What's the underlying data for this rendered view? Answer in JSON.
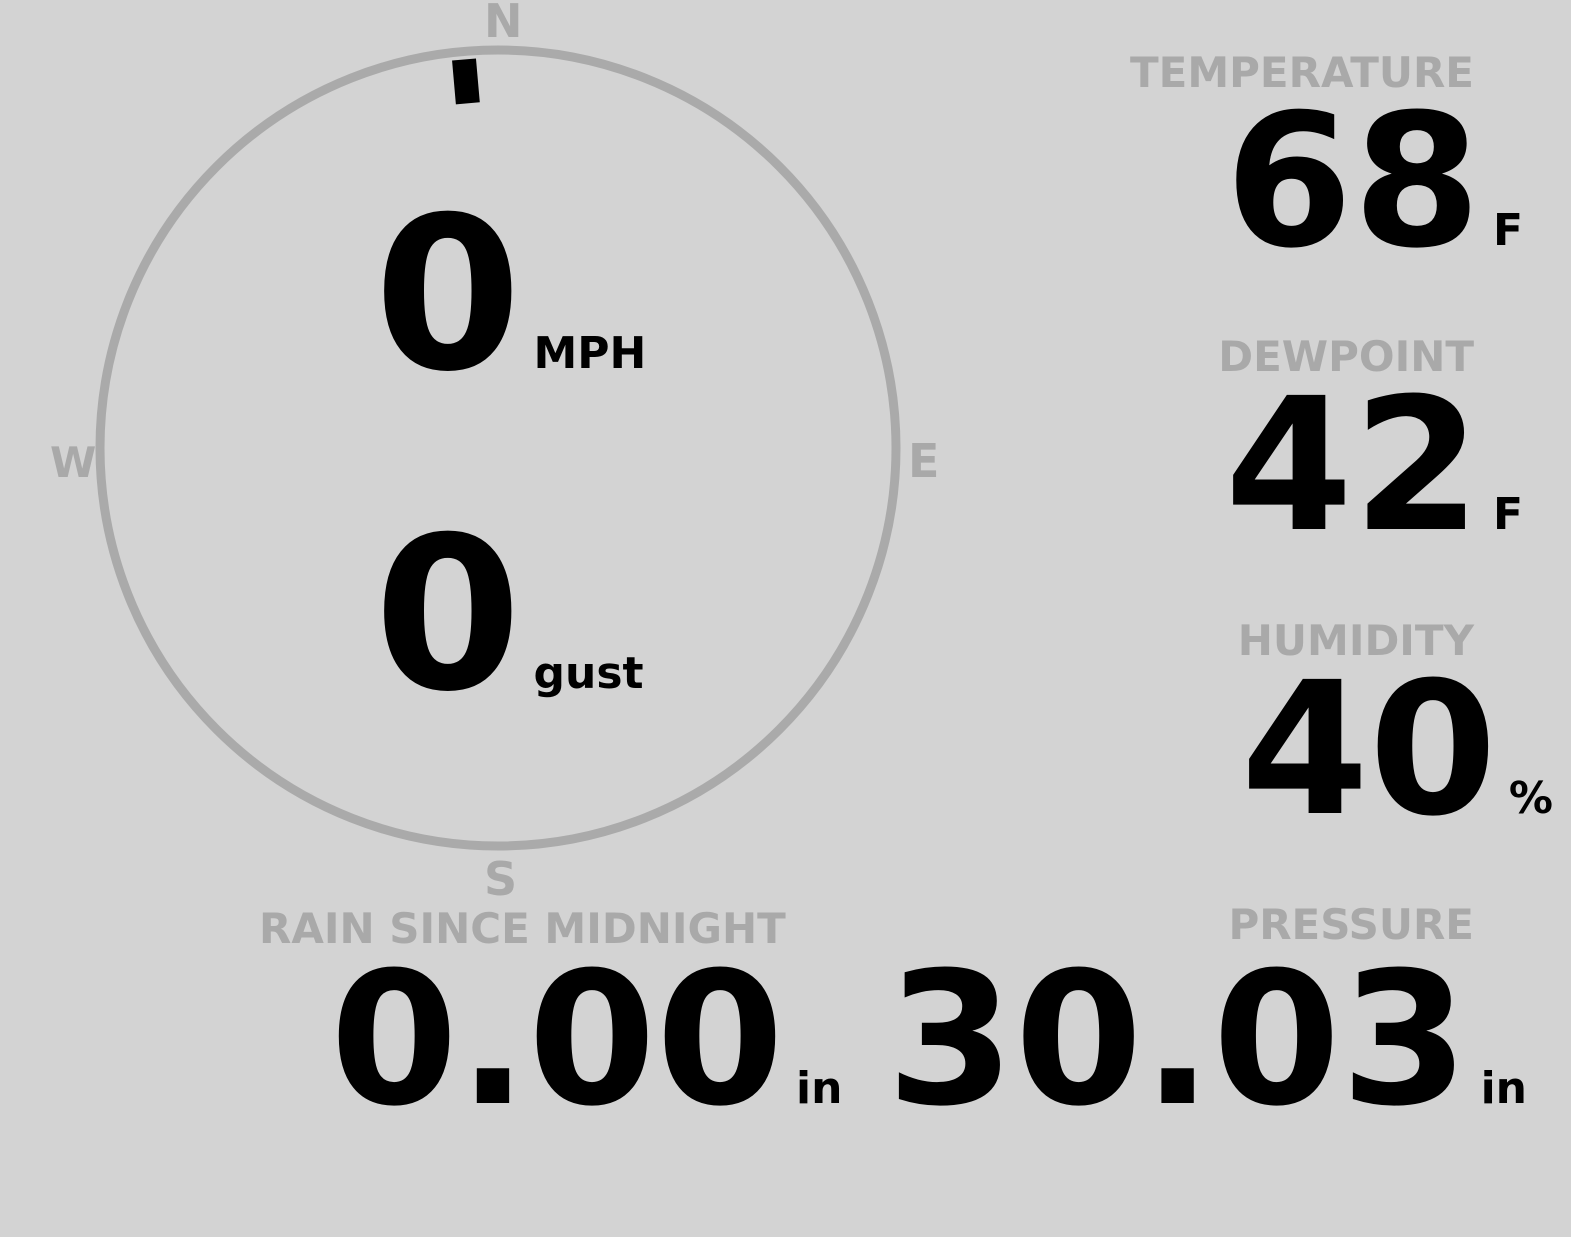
{
  "wind": {
    "speed": "0",
    "speed_unit": "MPH",
    "gust": "0",
    "gust_unit": "gust",
    "direction_deg": 355,
    "compass": {
      "n": "N",
      "e": "E",
      "s": "S",
      "w": "W"
    }
  },
  "temperature": {
    "label": "TEMPERATURE",
    "value": "68",
    "unit": "F"
  },
  "dewpoint": {
    "label": "DEWPOINT",
    "value": "42",
    "unit": "F"
  },
  "humidity": {
    "label": "HUMIDITY",
    "value": "40",
    "unit": "%"
  },
  "rain": {
    "label": "RAIN SINCE MIDNIGHT",
    "value": "0.00",
    "unit": "in"
  },
  "pressure": {
    "label": "PRESSURE",
    "value": "30.03",
    "unit": "in"
  },
  "colors": {
    "background": "#d3d3d3",
    "label": "#a9a9a9",
    "value": "#000000",
    "dial": "#aaaaaa"
  }
}
